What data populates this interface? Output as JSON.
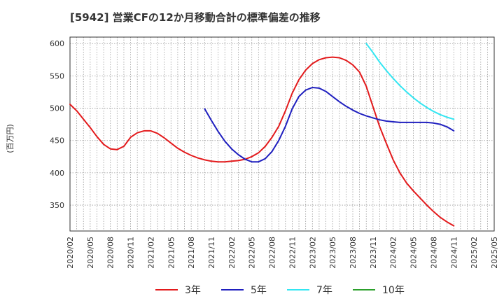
{
  "chart_data": {
    "type": "line",
    "title": "[5942]  営業CFの12か月移動合計の標準偏差の推移",
    "ylabel": "(百万円)",
    "xlabel": "",
    "ylim": [
      310,
      610
    ],
    "yticks": [
      350,
      400,
      450,
      500,
      550,
      600
    ],
    "xlim": [
      "2020-02",
      "2025-05"
    ],
    "xticks": [
      "2020/02",
      "2020/05",
      "2020/08",
      "2020/11",
      "2021/02",
      "2021/05",
      "2021/08",
      "2021/11",
      "2022/02",
      "2022/05",
      "2022/08",
      "2022/11",
      "2023/02",
      "2023/05",
      "2023/08",
      "2023/11",
      "2024/02",
      "2024/05",
      "2024/08",
      "2024/11",
      "2025/02",
      "2025/05"
    ],
    "grid": true,
    "legend_position": "bottom",
    "series": [
      {
        "name": "3年",
        "color": "#e31a1c",
        "x": [
          "2020-02",
          "2020-03",
          "2020-04",
          "2020-05",
          "2020-06",
          "2020-07",
          "2020-08",
          "2020-09",
          "2020-10",
          "2020-11",
          "2020-12",
          "2021-01",
          "2021-02",
          "2021-03",
          "2021-04",
          "2021-05",
          "2021-06",
          "2021-07",
          "2021-08",
          "2021-09",
          "2021-10",
          "2021-11",
          "2021-12",
          "2022-01",
          "2022-02",
          "2022-03",
          "2022-04",
          "2022-05",
          "2022-06",
          "2022-07",
          "2022-08",
          "2022-09",
          "2022-10",
          "2022-11",
          "2022-12",
          "2023-01",
          "2023-02",
          "2023-03",
          "2023-04",
          "2023-05",
          "2023-06",
          "2023-07",
          "2023-08",
          "2023-09",
          "2023-10",
          "2023-11",
          "2023-12",
          "2024-01",
          "2024-02",
          "2024-03",
          "2024-04",
          "2024-05",
          "2024-06",
          "2024-07",
          "2024-08",
          "2024-09",
          "2024-10",
          "2024-11"
        ],
        "y": [
          506,
          496,
          483,
          470,
          456,
          444,
          437,
          436,
          441,
          455,
          462,
          465,
          465,
          461,
          454,
          446,
          438,
          432,
          427,
          423,
          420,
          418,
          417,
          417,
          418,
          419,
          421,
          425,
          431,
          441,
          455,
          472,
          496,
          523,
          544,
          559,
          569,
          575,
          578,
          579,
          578,
          574,
          567,
          556,
          534,
          502,
          471,
          445,
          420,
          400,
          384,
          372,
          361,
          350,
          340,
          331,
          324,
          318
        ]
      },
      {
        "name": "5年",
        "color": "#1f1fbf",
        "x": [
          "2021-10",
          "2021-11",
          "2021-12",
          "2022-01",
          "2022-02",
          "2022-03",
          "2022-04",
          "2022-05",
          "2022-06",
          "2022-07",
          "2022-08",
          "2022-09",
          "2022-10",
          "2022-11",
          "2022-12",
          "2023-01",
          "2023-02",
          "2023-03",
          "2023-04",
          "2023-05",
          "2023-06",
          "2023-07",
          "2023-08",
          "2023-09",
          "2023-10",
          "2023-11",
          "2023-12",
          "2024-01",
          "2024-02",
          "2024-03",
          "2024-04",
          "2024-05",
          "2024-06",
          "2024-07",
          "2024-08",
          "2024-09",
          "2024-10",
          "2024-11"
        ],
        "y": [
          499,
          481,
          464,
          449,
          437,
          428,
          421,
          417,
          417,
          422,
          433,
          450,
          472,
          499,
          518,
          528,
          532,
          531,
          526,
          518,
          510,
          503,
          497,
          492,
          488,
          485,
          482,
          480,
          479,
          478,
          478,
          478,
          478,
          478,
          477,
          475,
          471,
          465
        ]
      },
      {
        "name": "7年",
        "color": "#33e6f2",
        "x": [
          "2023-10",
          "2023-11",
          "2023-12",
          "2024-01",
          "2024-02",
          "2024-03",
          "2024-04",
          "2024-05",
          "2024-06",
          "2024-07",
          "2024-08",
          "2024-09",
          "2024-10",
          "2024-11"
        ],
        "y": [
          600,
          586,
          571,
          558,
          546,
          535,
          525,
          516,
          508,
          501,
          495,
          490,
          486,
          483
        ]
      },
      {
        "name": "10年",
        "color": "#2ca02c",
        "x": [],
        "y": []
      }
    ]
  }
}
